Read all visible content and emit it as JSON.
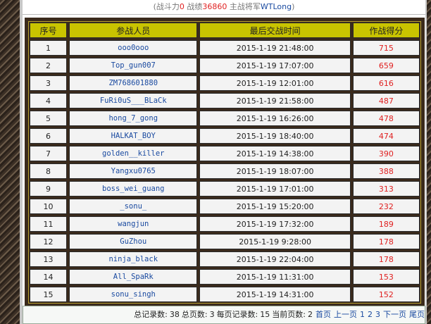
{
  "top_bar": [
    "(战斗力",
    "0",
    "战绩",
    "36860",
    "主战将军",
    "WTLong",
    ")"
  ],
  "table": {
    "columns": [
      "序号",
      "参战人员",
      "最后交战时间",
      "作战得分"
    ],
    "rows": [
      [
        1,
        "ooo0ooo",
        "2015-1-19 21:48:00",
        715
      ],
      [
        2,
        "Top_gun007",
        "2015-1-19 17:07:00",
        659
      ],
      [
        3,
        "ZM768601880",
        "2015-1-19 12:01:00",
        616
      ],
      [
        4,
        "FuRi0uS___BLaCk",
        "2015-1-19 21:58:00",
        487
      ],
      [
        5,
        "hong_7_gong",
        "2015-1-19 16:26:00",
        478
      ],
      [
        6,
        "HALKAT_BOY",
        "2015-1-19 18:40:00",
        474
      ],
      [
        7,
        "golden__killer",
        "2015-1-19 14:38:00",
        390
      ],
      [
        8,
        "Yangxu0765",
        "2015-1-19 18:07:00",
        388
      ],
      [
        9,
        "boss_wei_guang",
        "2015-1-19 17:01:00",
        313
      ],
      [
        10,
        "_sonu_",
        "2015-1-19 15:20:00",
        232
      ],
      [
        11,
        "wangjun",
        "2015-1-19 17:32:00",
        189
      ],
      [
        12,
        "GuZhou",
        "2015-1-19 9:28:00",
        178
      ],
      [
        13,
        "ninja_black",
        "2015-1-19 22:04:00",
        178
      ],
      [
        14,
        "All_SpaRk",
        "2015-1-19 11:31:00",
        153
      ],
      [
        15,
        "sonu_singh",
        "2015-1-19 14:31:00",
        152
      ]
    ]
  },
  "footer": {
    "stats": [
      "总记录数:",
      38,
      "总页数:",
      3,
      "每页记录数:",
      15,
      "当前页数:",
      2
    ],
    "links": [
      "首页",
      "上一页",
      "1",
      "2",
      "3",
      "下一页",
      "尾页"
    ]
  }
}
